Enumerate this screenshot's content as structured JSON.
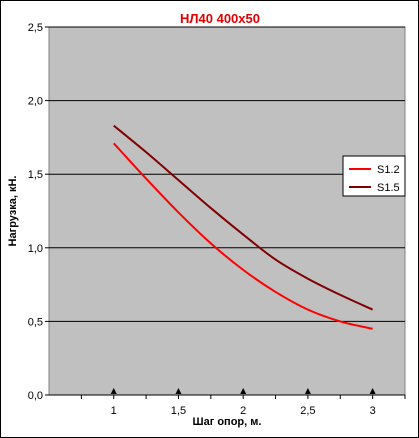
{
  "chart_data": {
    "type": "line",
    "title": "НЛ40 400х50",
    "xlabel": "Шаг опор, м.",
    "ylabel": "Нагрузка, кН.",
    "xlim": [
      0.5,
      3.25
    ],
    "ylim": [
      0,
      2.5
    ],
    "x_ticks": [
      {
        "value": 1,
        "label": "1"
      },
      {
        "value": 1.5,
        "label": "1,5"
      },
      {
        "value": 2,
        "label": "2"
      },
      {
        "value": 2.5,
        "label": "2,5"
      },
      {
        "value": 3,
        "label": "3"
      }
    ],
    "y_ticks": [
      {
        "value": 0,
        "label": "0,0"
      },
      {
        "value": 0.5,
        "label": "0,5"
      },
      {
        "value": 1,
        "label": "1,0"
      },
      {
        "value": 1.5,
        "label": "1,5"
      },
      {
        "value": 2,
        "label": "2,0"
      },
      {
        "value": 2.5,
        "label": "2,5"
      }
    ],
    "grid": "horizontal",
    "legend_position": "right",
    "series": [
      {
        "name": "S1.2",
        "color": "#ff0000",
        "x": [
          1,
          1.25,
          1.5,
          1.75,
          2,
          2.25,
          2.5,
          2.75,
          3
        ],
        "values": [
          1.71,
          1.47,
          1.24,
          1.03,
          0.85,
          0.7,
          0.58,
          0.5,
          0.45
        ]
      },
      {
        "name": "S1.5",
        "color": "#800000",
        "x": [
          1,
          1.25,
          1.5,
          1.75,
          2,
          2.25,
          2.5,
          2.75,
          3
        ],
        "values": [
          1.83,
          1.65,
          1.46,
          1.27,
          1.09,
          0.92,
          0.79,
          0.68,
          0.58
        ]
      }
    ],
    "colors": {
      "plot_background": "#c0c0c0",
      "gridline": "#000000",
      "title": "#e00000"
    }
  }
}
